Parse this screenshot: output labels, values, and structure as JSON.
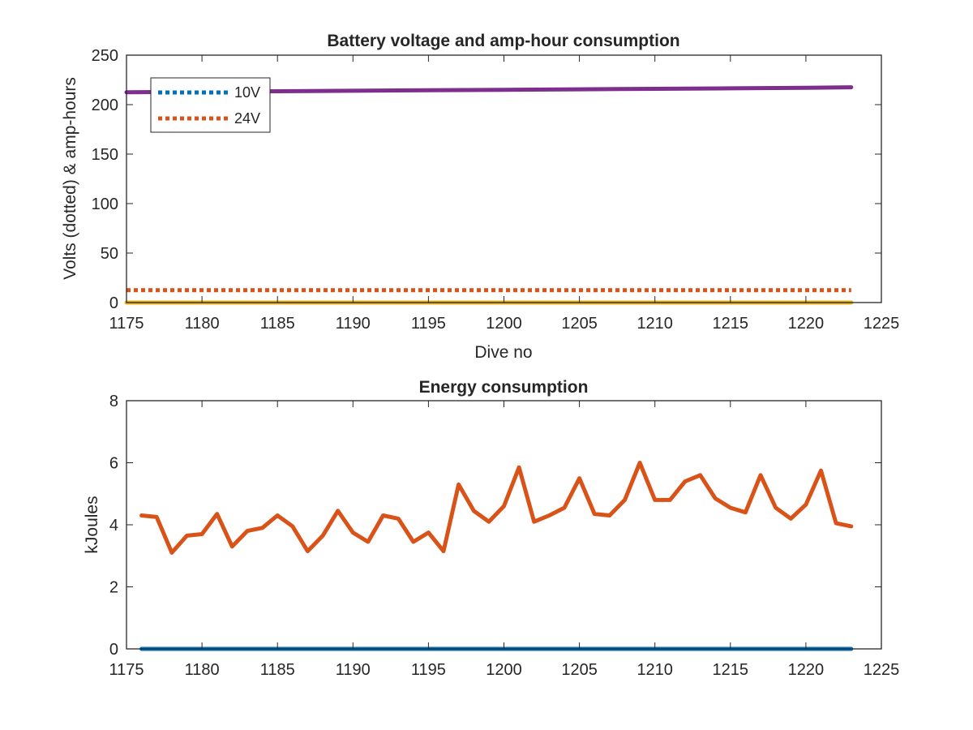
{
  "chart_data": [
    {
      "type": "line",
      "title": "Battery voltage and amp-hour consumption",
      "xlabel": "Dive no",
      "ylabel": "Volts (dotted) & amp-hours",
      "xlim": [
        1175,
        1225
      ],
      "ylim": [
        0,
        250
      ],
      "xticks": [
        1175,
        1180,
        1185,
        1190,
        1195,
        1200,
        1205,
        1210,
        1215,
        1220,
        1225
      ],
      "yticks": [
        0,
        50,
        100,
        150,
        200,
        250
      ],
      "grid": false,
      "legend": {
        "placement": "top-left",
        "entries": [
          "10V",
          "24V"
        ]
      },
      "series": [
        {
          "name": "10V",
          "style": "dotted",
          "color": "#0072BD",
          "x": [
            1175,
            1223
          ],
          "y": [
            0,
            0
          ]
        },
        {
          "name": "24V",
          "style": "dotted",
          "color": "#D95319",
          "x": [
            1175,
            1223
          ],
          "y": [
            12.5,
            12.5
          ]
        },
        {
          "style": "solid",
          "color": "#EDB120",
          "x": [
            1175,
            1223
          ],
          "y": [
            0,
            0
          ]
        },
        {
          "style": "solid",
          "color": "#7E2F8E",
          "x": [
            1175,
            1180,
            1185,
            1190,
            1195,
            1200,
            1205,
            1210,
            1215,
            1220,
            1223
          ],
          "y": [
            212.5,
            213,
            213.5,
            214,
            214.5,
            215,
            215.5,
            216,
            216.5,
            217,
            217.5
          ]
        }
      ]
    },
    {
      "type": "line",
      "title": "Energy consumption",
      "xlabel": "",
      "ylabel": "kJoules",
      "xlim": [
        1175,
        1225
      ],
      "ylim": [
        0,
        8
      ],
      "xticks": [
        1175,
        1180,
        1185,
        1190,
        1195,
        1200,
        1205,
        1210,
        1215,
        1220,
        1225
      ],
      "yticks": [
        0,
        2,
        4,
        6,
        8
      ],
      "grid": false,
      "series": [
        {
          "style": "solid",
          "color": "#0072BD",
          "x": [
            1176,
            1223
          ],
          "y": [
            0,
            0
          ]
        },
        {
          "style": "solid",
          "color": "#D95319",
          "x": [
            1176,
            1177,
            1178,
            1179,
            1180,
            1181,
            1182,
            1183,
            1184,
            1185,
            1186,
            1187,
            1188,
            1189,
            1190,
            1191,
            1192,
            1193,
            1194,
            1195,
            1196,
            1197,
            1198,
            1199,
            1200,
            1201,
            1202,
            1203,
            1204,
            1205,
            1206,
            1207,
            1208,
            1209,
            1210,
            1211,
            1212,
            1213,
            1214,
            1215,
            1216,
            1217,
            1218,
            1219,
            1220,
            1221,
            1222,
            1223
          ],
          "y": [
            4.3,
            4.25,
            3.1,
            3.65,
            3.7,
            4.35,
            3.3,
            3.8,
            3.9,
            4.3,
            3.95,
            3.15,
            3.65,
            4.45,
            3.75,
            3.45,
            4.3,
            4.2,
            3.45,
            3.75,
            3.15,
            5.3,
            4.45,
            4.1,
            4.6,
            5.85,
            4.1,
            4.3,
            4.55,
            5.5,
            4.35,
            4.3,
            4.8,
            6.0,
            4.8,
            4.8,
            5.4,
            5.6,
            4.85,
            4.55,
            4.4,
            5.6,
            4.55,
            4.2,
            4.65,
            5.75,
            4.05,
            3.95
          ]
        }
      ]
    }
  ]
}
